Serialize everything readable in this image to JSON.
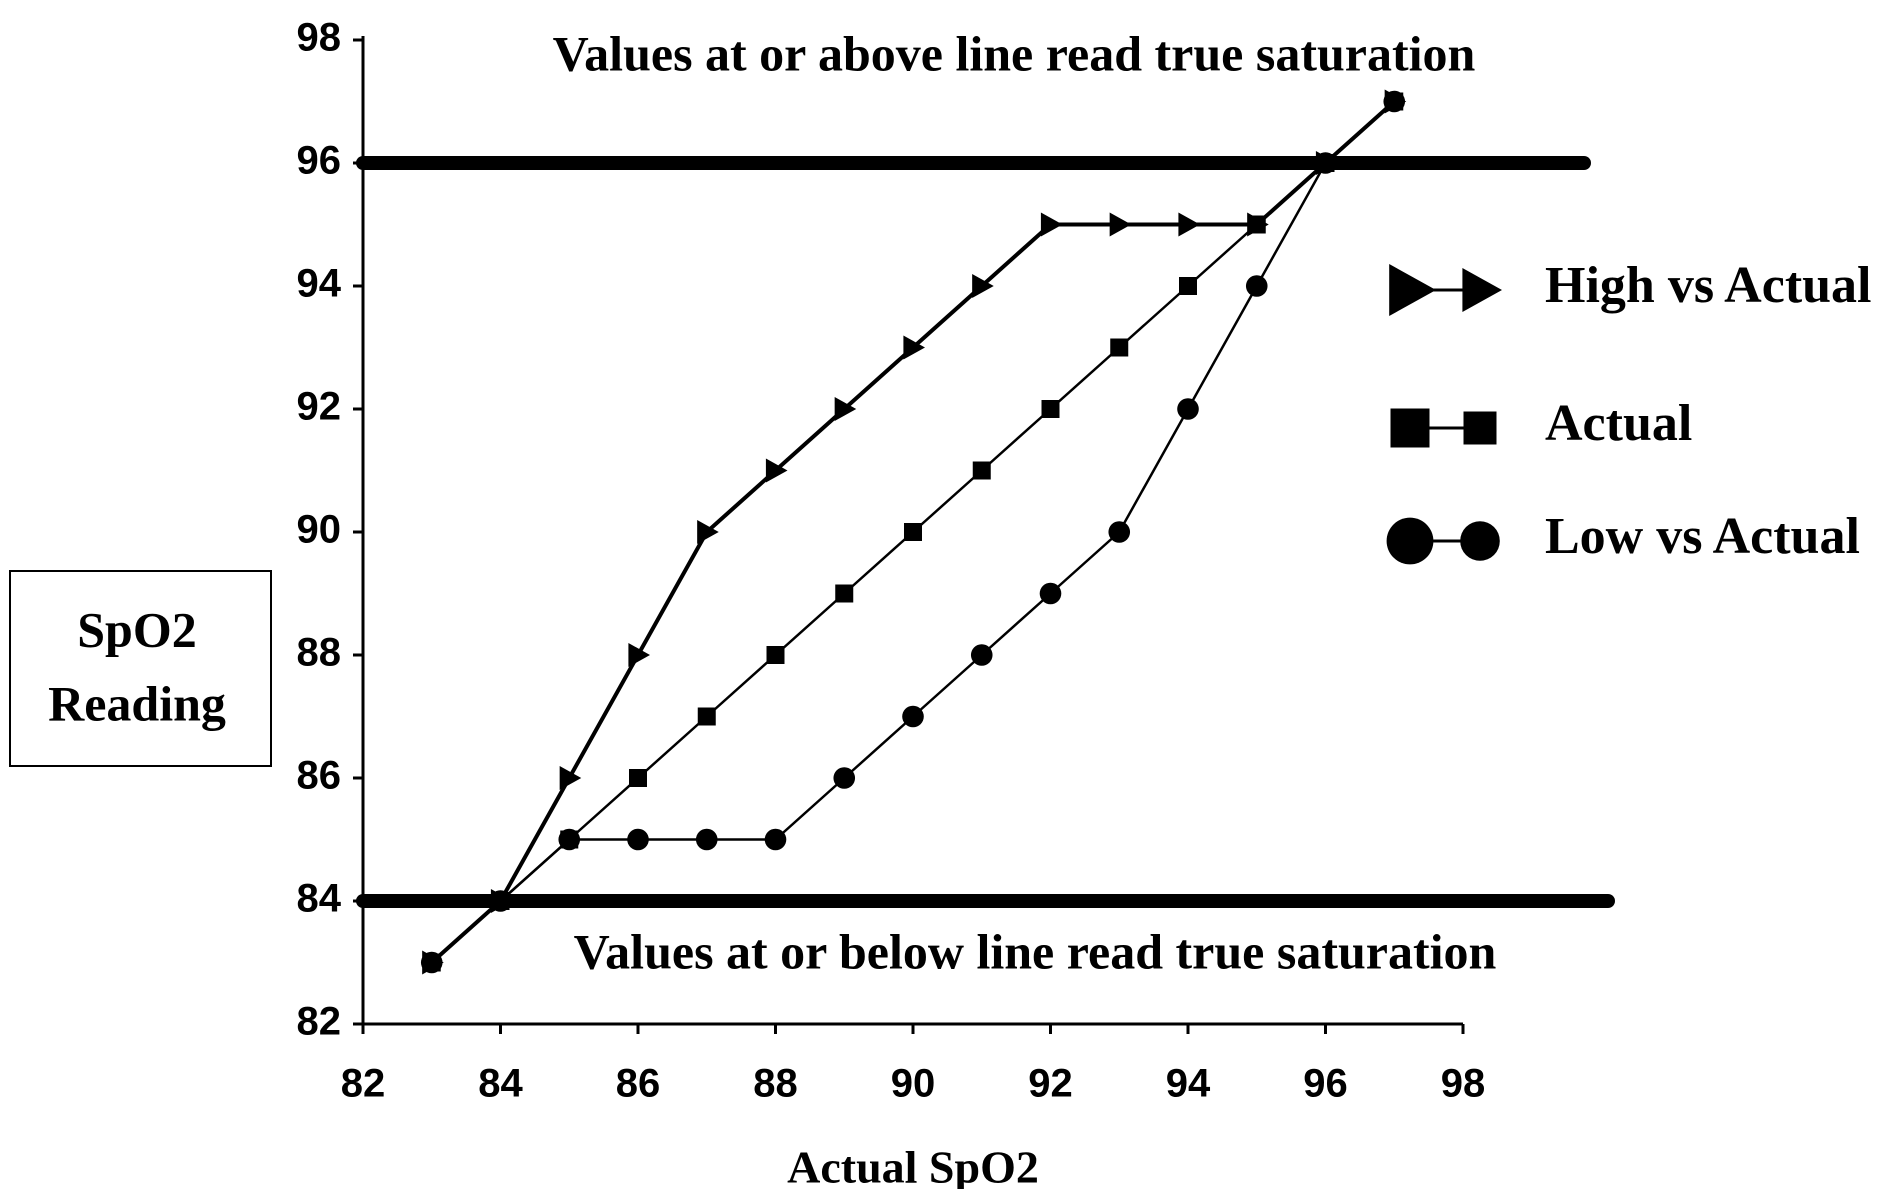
{
  "chart_data": {
    "type": "line",
    "xlabel": "Actual SpO2",
    "ylabel_lines": [
      "SpO2",
      "Reading"
    ],
    "annotations": [
      "Values at or above line read true saturation",
      "Values at or below line read true saturation"
    ],
    "reference_lines": [
      84,
      96
    ],
    "x": [
      83,
      84,
      85,
      86,
      87,
      88,
      89,
      90,
      91,
      92,
      93,
      94,
      95,
      96,
      97
    ],
    "series": [
      {
        "name": "High vs Actual",
        "color": "#000000",
        "marker": "triangle",
        "values": [
          83,
          84,
          86,
          88,
          90,
          91,
          92,
          93,
          94,
          95,
          95,
          95,
          95,
          96,
          97
        ]
      },
      {
        "name": "Actual",
        "color": "#000000",
        "marker": "square",
        "values": [
          83,
          84,
          85,
          86,
          87,
          88,
          89,
          90,
          91,
          92,
          93,
          94,
          95,
          96,
          97
        ]
      },
      {
        "name": "Low vs Actual",
        "color": "#000000",
        "marker": "circle",
        "values": [
          83,
          84,
          85,
          85,
          85,
          85,
          86,
          87,
          88,
          89,
          90,
          92,
          94,
          96,
          97
        ]
      }
    ],
    "xlim": [
      82,
      98
    ],
    "xticks": [
      82,
      84,
      86,
      88,
      90,
      92,
      94,
      96,
      98
    ],
    "ylim": [
      82,
      98
    ],
    "yticks": [
      82,
      84,
      86,
      88,
      90,
      92,
      94,
      96,
      98
    ],
    "legend": "right"
  }
}
